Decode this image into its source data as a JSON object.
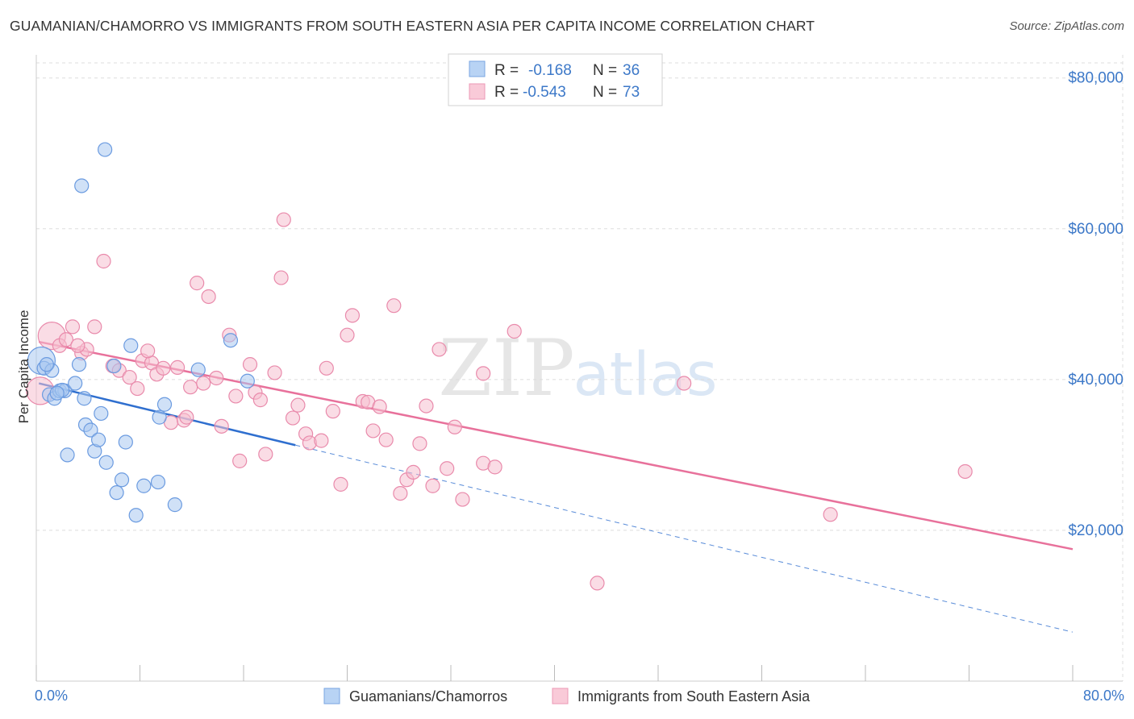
{
  "header": {
    "title": "GUAMANIAN/CHAMORRO VS IMMIGRANTS FROM SOUTH EASTERN ASIA PER CAPITA INCOME CORRELATION CHART",
    "source": "Source: ZipAtlas.com"
  },
  "watermark": {
    "part1": "ZIP",
    "part2": "atlas"
  },
  "colors": {
    "blue_fill": "#a9c8f0",
    "blue_stroke": "#6b9be0",
    "blue_line": "#2f6fcf",
    "pink_fill": "#f6bfd0",
    "pink_stroke": "#e98aab",
    "pink_line": "#e8719b",
    "axis_label": "#3c78c8",
    "grid": "#dddddd"
  },
  "chart_data": {
    "type": "scatter",
    "title": "GUAMANIAN/CHAMORRO VS IMMIGRANTS FROM SOUTH EASTERN ASIA PER CAPITA INCOME CORRELATION CHART",
    "xlabel": "",
    "ylabel": "Per Capita Income",
    "xlim": [
      0,
      80
    ],
    "ylim": [
      0,
      82000
    ],
    "x_tick_labels": [
      "0.0%",
      "80.0%"
    ],
    "y_ticks": [
      20000,
      40000,
      60000,
      80000
    ],
    "y_tick_labels": [
      "$20,000",
      "$40,000",
      "$60,000",
      "$80,000"
    ],
    "legend": {
      "position": "top-center",
      "entries": [
        {
          "r_label": "R =",
          "r_value": "-0.168",
          "n_label": "N =",
          "n_value": "36"
        },
        {
          "r_label": "R =",
          "r_value": "-0.543",
          "n_label": "N =",
          "n_value": "73"
        }
      ]
    },
    "bottom_legend": [
      "Guamanians/Chamorros",
      "Immigrants from South Eastern Asia"
    ],
    "series": [
      {
        "name": "Guamanians/Chamorros",
        "color": "blue",
        "trend": {
          "x1": 0.2,
          "y1": 39500,
          "x2": 20,
          "y2": 31300,
          "dash_to_x": 80,
          "dash_to_y": 6500
        },
        "points": [
          {
            "x": 0.4,
            "y": 42500,
            "big": true
          },
          {
            "x": 0.6,
            "y": 41500
          },
          {
            "x": 1.2,
            "y": 41200
          },
          {
            "x": 1.0,
            "y": 38000
          },
          {
            "x": 1.4,
            "y": 37500
          },
          {
            "x": 1.8,
            "y": 38500
          },
          {
            "x": 2.2,
            "y": 38500
          },
          {
            "x": 3.0,
            "y": 39500
          },
          {
            "x": 3.3,
            "y": 42000
          },
          {
            "x": 3.7,
            "y": 37500
          },
          {
            "x": 3.8,
            "y": 34000
          },
          {
            "x": 4.2,
            "y": 33300
          },
          {
            "x": 4.5,
            "y": 30500
          },
          {
            "x": 4.8,
            "y": 32000
          },
          {
            "x": 5.0,
            "y": 35500
          },
          {
            "x": 5.4,
            "y": 29000
          },
          {
            "x": 2.4,
            "y": 30000
          },
          {
            "x": 6.2,
            "y": 25000
          },
          {
            "x": 6.6,
            "y": 26700
          },
          {
            "x": 6.9,
            "y": 31700
          },
          {
            "x": 7.3,
            "y": 44500
          },
          {
            "x": 7.7,
            "y": 22000
          },
          {
            "x": 8.3,
            "y": 25900
          },
          {
            "x": 9.4,
            "y": 26400
          },
          {
            "x": 9.5,
            "y": 35000
          },
          {
            "x": 9.9,
            "y": 36700
          },
          {
            "x": 10.7,
            "y": 23400
          },
          {
            "x": 12.5,
            "y": 41300
          },
          {
            "x": 15.0,
            "y": 45200
          },
          {
            "x": 16.3,
            "y": 39800
          },
          {
            "x": 5.3,
            "y": 70500
          },
          {
            "x": 3.5,
            "y": 65700
          },
          {
            "x": 0.8,
            "y": 42000
          },
          {
            "x": 2.0,
            "y": 38600
          },
          {
            "x": 6.0,
            "y": 41800
          },
          {
            "x": 1.6,
            "y": 38200
          }
        ]
      },
      {
        "name": "Immigrants from South Eastern Asia",
        "color": "pink",
        "trend": {
          "x1": 0.2,
          "y1": 45000,
          "x2": 80,
          "y2": 17500
        },
        "points": [
          {
            "x": 0.3,
            "y": 38500,
            "big": true
          },
          {
            "x": 1.2,
            "y": 45800,
            "big": true
          },
          {
            "x": 1.8,
            "y": 44500
          },
          {
            "x": 2.3,
            "y": 45300
          },
          {
            "x": 2.8,
            "y": 47000
          },
          {
            "x": 3.5,
            "y": 43500
          },
          {
            "x": 3.9,
            "y": 44000
          },
          {
            "x": 4.5,
            "y": 47000
          },
          {
            "x": 5.2,
            "y": 55700
          },
          {
            "x": 5.9,
            "y": 41800
          },
          {
            "x": 6.4,
            "y": 41200
          },
          {
            "x": 7.2,
            "y": 40300
          },
          {
            "x": 7.8,
            "y": 38800
          },
          {
            "x": 8.2,
            "y": 42500
          },
          {
            "x": 8.9,
            "y": 42200
          },
          {
            "x": 9.3,
            "y": 40700
          },
          {
            "x": 9.8,
            "y": 41500
          },
          {
            "x": 10.4,
            "y": 34300
          },
          {
            "x": 10.9,
            "y": 41600
          },
          {
            "x": 11.4,
            "y": 34600
          },
          {
            "x": 11.9,
            "y": 39000
          },
          {
            "x": 12.4,
            "y": 52800
          },
          {
            "x": 12.9,
            "y": 39500
          },
          {
            "x": 13.3,
            "y": 51000
          },
          {
            "x": 13.9,
            "y": 40200
          },
          {
            "x": 14.3,
            "y": 33800
          },
          {
            "x": 14.9,
            "y": 45900
          },
          {
            "x": 15.4,
            "y": 37800
          },
          {
            "x": 15.7,
            "y": 29200
          },
          {
            "x": 16.5,
            "y": 42000
          },
          {
            "x": 16.9,
            "y": 38300
          },
          {
            "x": 17.3,
            "y": 37300
          },
          {
            "x": 17.7,
            "y": 30100
          },
          {
            "x": 18.4,
            "y": 40900
          },
          {
            "x": 18.9,
            "y": 53500
          },
          {
            "x": 19.1,
            "y": 61200
          },
          {
            "x": 19.8,
            "y": 34900
          },
          {
            "x": 20.2,
            "y": 36600
          },
          {
            "x": 20.8,
            "y": 32800
          },
          {
            "x": 21.1,
            "y": 31600
          },
          {
            "x": 22.0,
            "y": 31900
          },
          {
            "x": 22.4,
            "y": 41500
          },
          {
            "x": 22.9,
            "y": 35800
          },
          {
            "x": 23.5,
            "y": 26100
          },
          {
            "x": 24.0,
            "y": 45900
          },
          {
            "x": 24.4,
            "y": 48500
          },
          {
            "x": 25.2,
            "y": 37100
          },
          {
            "x": 25.6,
            "y": 37000
          },
          {
            "x": 26.0,
            "y": 33200
          },
          {
            "x": 26.5,
            "y": 36400
          },
          {
            "x": 27.0,
            "y": 32000
          },
          {
            "x": 27.6,
            "y": 49800
          },
          {
            "x": 28.1,
            "y": 24900
          },
          {
            "x": 28.6,
            "y": 26700
          },
          {
            "x": 29.1,
            "y": 27700
          },
          {
            "x": 29.6,
            "y": 31500
          },
          {
            "x": 30.1,
            "y": 36500
          },
          {
            "x": 30.6,
            "y": 25900
          },
          {
            "x": 31.1,
            "y": 44000
          },
          {
            "x": 31.7,
            "y": 28200
          },
          {
            "x": 32.3,
            "y": 33700
          },
          {
            "x": 32.9,
            "y": 24100
          },
          {
            "x": 34.5,
            "y": 28900
          },
          {
            "x": 34.5,
            "y": 40800
          },
          {
            "x": 35.4,
            "y": 28400
          },
          {
            "x": 36.9,
            "y": 46400
          },
          {
            "x": 43.3,
            "y": 13000
          },
          {
            "x": 50.0,
            "y": 39500
          },
          {
            "x": 61.3,
            "y": 22100
          },
          {
            "x": 71.7,
            "y": 27800
          },
          {
            "x": 3.2,
            "y": 44500
          },
          {
            "x": 8.6,
            "y": 43800
          },
          {
            "x": 11.6,
            "y": 35000
          }
        ]
      }
    ]
  }
}
